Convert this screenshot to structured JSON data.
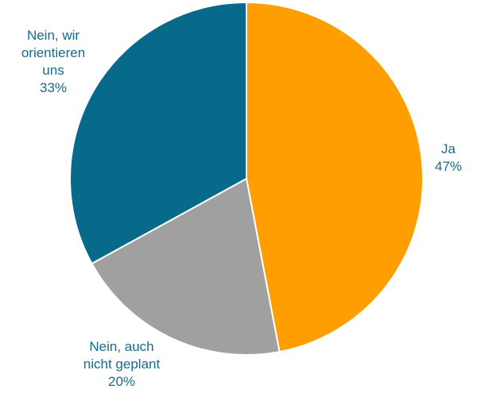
{
  "chart_data": {
    "type": "pie",
    "title": "",
    "slices": [
      {
        "label_lines": [
          "Ja"
        ],
        "value": 47,
        "value_label": "47%",
        "color": "#ff9e00"
      },
      {
        "label_lines": [
          "Nein, auch",
          "nicht geplant"
        ],
        "value": 20,
        "value_label": "20%",
        "color": "#a0a0a0"
      },
      {
        "label_lines": [
          "Nein, wir",
          "orientieren",
          "uns"
        ],
        "value": 33,
        "value_label": "33%",
        "color": "#076a8a"
      }
    ],
    "start_angle": "12 o'clock",
    "direction": "clockwise",
    "label_color": "#166a8c",
    "slice_border_color": "#ffffff"
  }
}
